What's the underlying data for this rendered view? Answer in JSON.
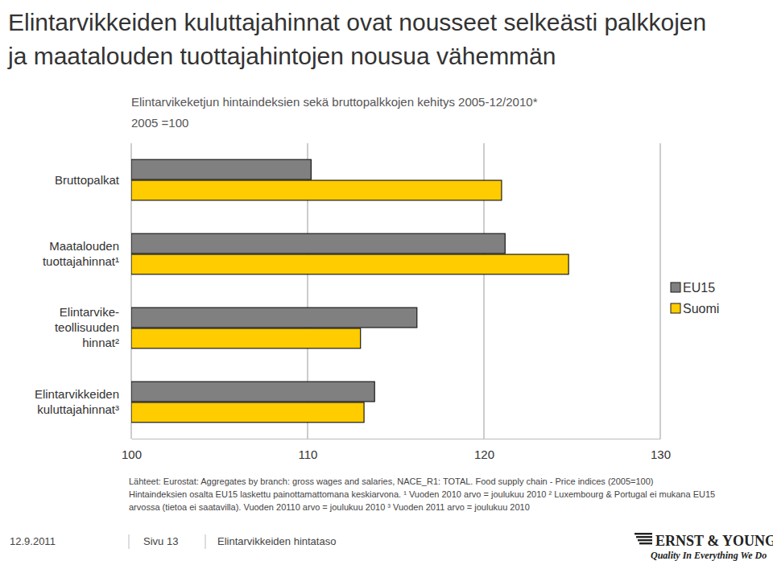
{
  "slide": {
    "title": [
      "Elintarvikkeiden kuluttajahinnat ovat nousseet selkeästi palkkojen",
      "ja maatalouden tuottajahintojen nousua vähemmän"
    ],
    "footer": {
      "date": "12.9.2011",
      "page": "Sivu 13",
      "section": "Elintarvikkeiden hintataso",
      "logo": "ERNST & YOUNG",
      "tagline": "Quality In Everything We Do"
    }
  },
  "chart_data": {
    "type": "bar",
    "orientation": "horizontal",
    "title": "Elintarvikeketjun hintaindeksien sekä bruttopalkkojen kehitys 2005-12/2010*",
    "subtitle": "2005 =100",
    "categories": [
      "Bruttopalkat",
      "Maatalouden\ntuottajahinnat¹",
      "Elintarvike-\nteollisuuden\nhinnat²",
      "Elintarvikkeiden\nkuluttajahinnat³"
    ],
    "series": [
      {
        "name": "EU15",
        "color": "#808080",
        "values": [
          110.2,
          121.2,
          116.2,
          113.8
        ]
      },
      {
        "name": "Suomi",
        "color": "#ffcc00",
        "values": [
          121.0,
          124.8,
          113.0,
          113.2
        ]
      }
    ],
    "xlim": [
      100,
      130
    ],
    "xticks": [
      100,
      110,
      120,
      130
    ],
    "grid": true,
    "legend": "right",
    "annotations": [
      "Lähteet: Eurostat: Aggregates by branch: gross wages and salaries, NACE_R1: TOTAL.  Food supply chain - Price indices (2005=100)",
      "Hintaindeksien osalta EU15 laskettu painottamattomana keskiarvona. ¹ Vuoden 2010 arvo = joulukuu 2010 ² Luxembourg & Portugal ei mukana EU15",
      "arvossa (tietoa ei saatavilla). Vuoden 20110 arvo = joulukuu 2010 ³ Vuoden 2011 arvo = joulukuu 2010"
    ]
  }
}
